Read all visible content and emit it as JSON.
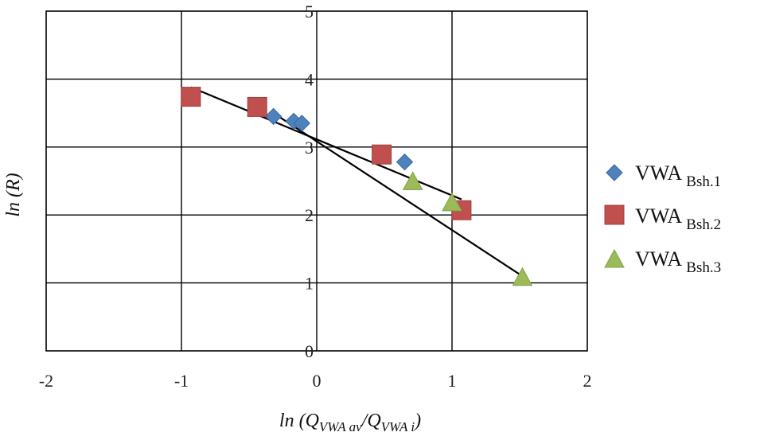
{
  "chart_data": {
    "type": "scatter",
    "xlabel": {
      "main": "ln (Q",
      "sub1": "VWA av",
      "mid": "/Q",
      "sub2": "VWA i",
      "end": ")"
    },
    "ylabel": "ln (R)",
    "xlim": [
      -2,
      2
    ],
    "ylim": [
      0,
      5
    ],
    "x_ticks": [
      -2,
      -1,
      0,
      1,
      2
    ],
    "y_ticks": [
      0,
      1,
      2,
      3,
      4,
      5
    ],
    "x_tick_labels": [
      "-2",
      "-1",
      "0",
      "1",
      "2"
    ],
    "y_tick_labels": [
      "0",
      "1",
      "2",
      "3",
      "4",
      "5"
    ],
    "grid": true,
    "legend_position": "right",
    "series": [
      {
        "name": {
          "main": "VWA ",
          "sub": "Bsh.1"
        },
        "marker": "diamond",
        "color": "#4f81bd",
        "points": [
          [
            -0.32,
            3.45
          ],
          [
            -0.17,
            3.38
          ],
          [
            -0.11,
            3.35
          ],
          [
            0.65,
            2.78
          ]
        ]
      },
      {
        "name": {
          "main": "VWA ",
          "sub": "Bsh.2"
        },
        "marker": "square",
        "color": "#c0504d",
        "points": [
          [
            -0.93,
            3.74
          ],
          [
            -0.44,
            3.59
          ],
          [
            0.48,
            2.89
          ],
          [
            1.07,
            2.07
          ]
        ]
      },
      {
        "name": {
          "main": "VWA ",
          "sub": "Bsh.3"
        },
        "marker": "triangle",
        "color": "#9bbb59",
        "points": [
          [
            0.71,
            2.49
          ],
          [
            1.0,
            2.18
          ],
          [
            1.52,
            1.08
          ]
        ]
      }
    ],
    "trendlines": [
      {
        "color": "#000000",
        "from": [
          -0.93,
          3.88
        ],
        "to": [
          1.07,
          2.23
        ]
      },
      {
        "color": "#000000",
        "from": [
          -0.32,
          3.5
        ],
        "to": [
          1.52,
          1.1
        ]
      }
    ]
  }
}
